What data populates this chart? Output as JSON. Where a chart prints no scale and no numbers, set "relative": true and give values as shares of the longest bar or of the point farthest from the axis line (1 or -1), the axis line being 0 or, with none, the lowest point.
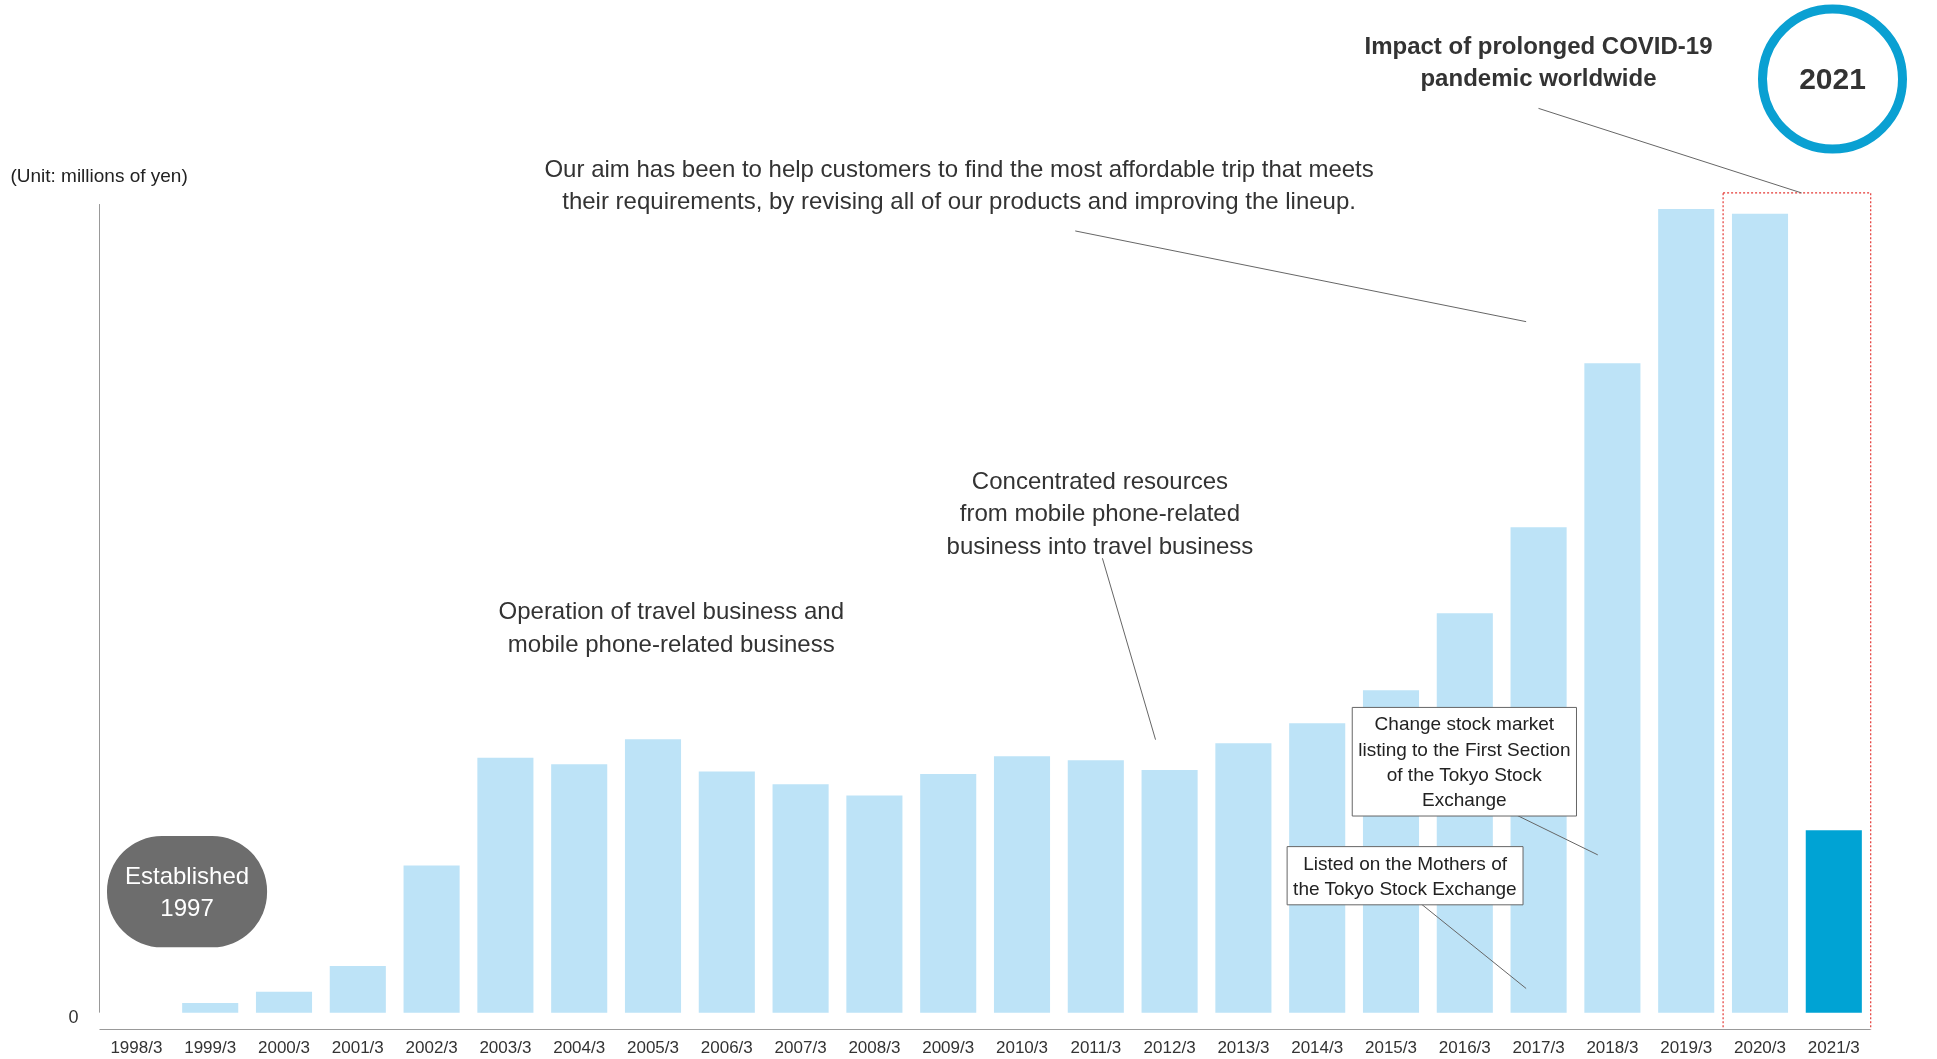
{
  "chart_data": {
    "type": "bar",
    "relative": true,
    "categories": [
      "1998/3",
      "1999/3",
      "2000/3",
      "2001/3",
      "2002/3",
      "2003/3",
      "2004/3",
      "2005/3",
      "2006/3",
      "2007/3",
      "2008/3",
      "2009/3",
      "2010/3",
      "2011/3",
      "2012/3",
      "2013/3",
      "2014/3",
      "2015/3",
      "2016/3",
      "2017/3",
      "2018/3",
      "2019/3",
      "2020/3",
      "2021/3"
    ],
    "values": [
      0,
      0.012,
      0.026,
      0.058,
      0.183,
      0.317,
      0.309,
      0.34,
      0.3,
      0.284,
      0.27,
      0.297,
      0.319,
      0.314,
      0.302,
      0.335,
      0.36,
      0.401,
      0.497,
      0.604,
      0.808,
      1,
      0.994,
      0.227
    ],
    "colors": [
      "#bde3f7",
      "#bde3f7",
      "#bde3f7",
      "#bde3f7",
      "#bde3f7",
      "#bde3f7",
      "#bde3f7",
      "#bde3f7",
      "#bde3f7",
      "#bde3f7",
      "#bde3f7",
      "#bde3f7",
      "#bde3f7",
      "#bde3f7",
      "#bde3f7",
      "#bde3f7",
      "#bde3f7",
      "#bde3f7",
      "#bde3f7",
      "#bde3f7",
      "#bde3f7",
      "#bde3f7",
      "#bde3f7",
      "#00a3d4"
    ],
    "annotations": [
      "(Unit: millions of yen)",
      "Our aim has been to help customers to find the most affordable trip that meets\ntheir requirements, by revising all of our products and improving the lineup.",
      "Impact of prolonged COVID-19\npandemic worldwide",
      "2021",
      "Operation of travel business and\nmobile phone-related business",
      "Concentrated resources\nfrom mobile phone-related\nbusiness into travel business",
      "Change stock market\nlisting to the First Section\nof the Tokyo Stock\nExchange",
      "Listed on the Mothers of\nthe Tokyo Stock Exchange",
      "Established\n1997",
      "0"
    ]
  }
}
